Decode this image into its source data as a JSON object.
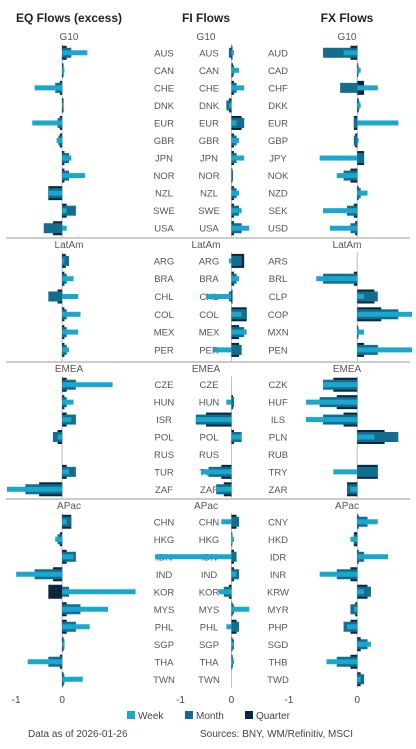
{
  "colors": {
    "week": "#19a7ce",
    "month": "#136d8c",
    "quarter": "#0b2740",
    "axis": "#bcbcbc",
    "sep": "#777777"
  },
  "legend": [
    {
      "key": "week",
      "label": "Week"
    },
    {
      "key": "month",
      "label": "Month"
    },
    {
      "key": "quarter",
      "label": "Quarter"
    }
  ],
  "footer": {
    "left": "Data as of 2026-01-26",
    "right": "Sources:  BNY, WM/Refinitiv, MSCI"
  },
  "chart_data": [
    {
      "type": "bar",
      "orientation": "horizontal",
      "title": "EQ Flows (excess)",
      "xlim": [
        -1.2,
        1.5
      ],
      "xticks": [
        -1,
        0
      ],
      "series_order": [
        "quarter",
        "month",
        "week"
      ],
      "groups": [
        {
          "name": "G10",
          "rows": [
            {
              "label": "AUS",
              "week": 0.55,
              "month": 0.2,
              "quarter": 0.1
            },
            {
              "label": "CAN",
              "week": 0.05,
              "month": 0.02,
              "quarter": 0.03
            },
            {
              "label": "CHE",
              "week": -0.6,
              "month": -0.15,
              "quarter": -0.05
            },
            {
              "label": "DNK",
              "week": 0.02,
              "month": 0.02,
              "quarter": 0.03
            },
            {
              "label": "EUR",
              "week": -0.65,
              "month": -0.1,
              "quarter": -0.05
            },
            {
              "label": "GBR",
              "week": -0.12,
              "month": -0.08,
              "quarter": -0.05
            },
            {
              "label": "JPN",
              "week": 0.2,
              "month": 0.15,
              "quarter": 0.05
            },
            {
              "label": "NOR",
              "week": 0.5,
              "month": 0.15,
              "quarter": 0.05
            },
            {
              "label": "NZL",
              "week": -0.3,
              "month": -0.3,
              "quarter": -0.3
            },
            {
              "label": "SWE",
              "week": 0.1,
              "month": 0.3,
              "quarter": 0.1
            },
            {
              "label": "USA",
              "week": 0.1,
              "month": -0.4,
              "quarter": -0.2
            }
          ]
        },
        {
          "name": "LatAm",
          "rows": [
            {
              "label": "ARG",
              "week": 0.05,
              "month": 0.15,
              "quarter": 0.08
            },
            {
              "label": "BRA",
              "week": 0.25,
              "month": 0.1,
              "quarter": 0.05
            },
            {
              "label": "CHL",
              "week": 0.35,
              "month": -0.3,
              "quarter": -0.1
            },
            {
              "label": "COL",
              "week": 0.4,
              "month": 0.1,
              "quarter": 0.05
            },
            {
              "label": "MEX",
              "week": 0.35,
              "month": 0.1,
              "quarter": 0.05
            },
            {
              "label": "PER",
              "week": 0.15,
              "month": 0.1,
              "quarter": 0.05
            }
          ]
        },
        {
          "name": "EMEA",
          "rows": [
            {
              "label": "CZE",
              "week": 1.1,
              "month": 0.3,
              "quarter": 0.1
            },
            {
              "label": "HUN",
              "week": 0.25,
              "month": 0.1,
              "quarter": 0.05
            },
            {
              "label": "ISR",
              "week": 0.2,
              "month": 0.3,
              "quarter": 0.1
            },
            {
              "label": "POL",
              "week": -0.1,
              "month": -0.2,
              "quarter": -0.1
            },
            {
              "label": "RUS",
              "week": 0.0,
              "month": 0.0,
              "quarter": 0.0
            },
            {
              "label": "TUR",
              "week": 0.15,
              "month": 0.3,
              "quarter": 0.1
            },
            {
              "label": "ZAF",
              "week": -1.2,
              "month": -0.8,
              "quarter": -0.5
            }
          ]
        },
        {
          "name": "APac",
          "rows": [
            {
              "label": "CHN",
              "week": 0.1,
              "month": 0.2,
              "quarter": 0.2
            },
            {
              "label": "HKG",
              "week": -0.15,
              "month": -0.1,
              "quarter": -0.05
            },
            {
              "label": "IDN",
              "week": 0.25,
              "month": 0.3,
              "quarter": 0.1
            },
            {
              "label": "IND",
              "week": -1.0,
              "month": -0.6,
              "quarter": -0.2
            },
            {
              "label": "KOR",
              "week": 1.6,
              "month": 0.15,
              "quarter": -0.3
            },
            {
              "label": "MYS",
              "week": 1.0,
              "month": 0.4,
              "quarter": 0.1
            },
            {
              "label": "PHL",
              "week": 0.6,
              "month": 0.3,
              "quarter": 0.1
            },
            {
              "label": "SGP",
              "week": 0.05,
              "month": 0.05,
              "quarter": 0.03
            },
            {
              "label": "THA",
              "week": -0.75,
              "month": -0.3,
              "quarter": -0.05
            },
            {
              "label": "TWN",
              "week": 0.45,
              "month": 0.05,
              "quarter": 0.03
            }
          ]
        }
      ]
    },
    {
      "type": "bar",
      "orientation": "horizontal",
      "title": "FI Flows",
      "xlim": [
        -1.6,
        0.6
      ],
      "xticks": [
        -1,
        0
      ],
      "series_order": [
        "quarter",
        "month",
        "week"
      ],
      "groups": [
        {
          "name": "G10",
          "rows": [
            {
              "label": "AUS",
              "week": 0.05,
              "month": -0.05,
              "quarter": 0.02
            },
            {
              "label": "CAN",
              "week": 0.15,
              "month": 0.05,
              "quarter": 0.03
            },
            {
              "label": "CHE",
              "week": 0.25,
              "month": 0.1,
              "quarter": 0.05
            },
            {
              "label": "DNK",
              "week": -0.05,
              "month": -0.1,
              "quarter": -0.05
            },
            {
              "label": "EUR",
              "week": 0.1,
              "month": 0.25,
              "quarter": 0.2
            },
            {
              "label": "GBR",
              "week": 0.15,
              "month": 0.1,
              "quarter": 0.05
            },
            {
              "label": "JPN",
              "week": 0.25,
              "month": 0.1,
              "quarter": 0.05
            },
            {
              "label": "NOR",
              "week": 0.0,
              "month": 0.03,
              "quarter": 0.02
            },
            {
              "label": "NZL",
              "week": 0.15,
              "month": 0.1,
              "quarter": 0.05
            },
            {
              "label": "SWE",
              "week": 0.2,
              "month": 0.15,
              "quarter": 0.05
            },
            {
              "label": "USA",
              "week": 0.35,
              "month": 0.2,
              "quarter": 0.05
            }
          ]
        },
        {
          "name": "LatAm",
          "rows": [
            {
              "label": "ARG",
              "week": -0.05,
              "month": 0.2,
              "quarter": 0.25
            },
            {
              "label": "BRA",
              "week": 0.15,
              "month": 0.1,
              "quarter": 0.05
            },
            {
              "label": "CHL",
              "week": -0.5,
              "month": -0.05,
              "quarter": 0.02
            },
            {
              "label": "COL",
              "week": 0.2,
              "month": 0.3,
              "quarter": 0.3
            },
            {
              "label": "MEX",
              "week": 0.3,
              "month": 0.25,
              "quarter": 0.15
            },
            {
              "label": "PER",
              "week": -0.35,
              "month": 0.2,
              "quarter": 0.15
            }
          ]
        },
        {
          "name": "EMEA",
          "rows": [
            {
              "label": "CZE",
              "week": 0.0,
              "month": 0.0,
              "quarter": 0.0
            },
            {
              "label": "HUN",
              "week": -0.1,
              "month": 0.05,
              "quarter": 0.03
            },
            {
              "label": "ISR",
              "week": -0.7,
              "month": -0.7,
              "quarter": -0.5
            },
            {
              "label": "POL",
              "week": 0.2,
              "month": 0.2,
              "quarter": 0.05
            },
            {
              "label": "RUS",
              "week": 0.0,
              "month": 0.0,
              "quarter": 0.0
            },
            {
              "label": "TUR",
              "week": -0.6,
              "month": -0.45,
              "quarter": -0.2
            },
            {
              "label": "ZAF",
              "week": -0.3,
              "month": -0.3,
              "quarter": -0.15
            }
          ]
        },
        {
          "name": "APac",
          "rows": [
            {
              "label": "CHN",
              "week": -0.2,
              "month": 0.15,
              "quarter": 0.1
            },
            {
              "label": "HKG",
              "week": 0.05,
              "month": 0.02,
              "quarter": 0.01
            },
            {
              "label": "IDN",
              "week": -1.5,
              "month": 0.1,
              "quarter": 0.05
            },
            {
              "label": "IND",
              "week": 0.1,
              "month": 0.15,
              "quarter": 0.05
            },
            {
              "label": "KOR",
              "week": -0.25,
              "month": -0.15,
              "quarter": -0.05
            },
            {
              "label": "MYS",
              "week": 0.35,
              "month": 0.05,
              "quarter": 0.02
            },
            {
              "label": "PHL",
              "week": -0.1,
              "month": 0.15,
              "quarter": 0.1
            },
            {
              "label": "SGP",
              "week": 0.05,
              "month": 0.05,
              "quarter": 0.02
            },
            {
              "label": "THA",
              "week": 0.05,
              "month": 0.03,
              "quarter": 0.02
            },
            {
              "label": "TWN",
              "week": 0.0,
              "month": 0.0,
              "quarter": 0.0
            }
          ]
        }
      ]
    },
    {
      "type": "bar",
      "orientation": "horizontal",
      "title": "FX Flows",
      "xlim": [
        -1.1,
        0.8
      ],
      "xticks": [
        -1,
        0
      ],
      "series_order": [
        "quarter",
        "month",
        "week"
      ],
      "groups": [
        {
          "name": "G10",
          "rows": [
            {
              "label": "AUD",
              "week": -0.2,
              "month": -0.5,
              "quarter": -0.1
            },
            {
              "label": "CAD",
              "week": 0.05,
              "month": 0.02,
              "quarter": 0.01
            },
            {
              "label": "CHF",
              "week": 0.3,
              "month": -0.25,
              "quarter": 0.1
            },
            {
              "label": "DKK",
              "week": 0.05,
              "month": 0.03,
              "quarter": 0.02
            },
            {
              "label": "EUR",
              "week": 0.6,
              "month": -0.05,
              "quarter": -0.05
            },
            {
              "label": "GBP",
              "week": 0.02,
              "month": -0.05,
              "quarter": -0.03
            },
            {
              "label": "JPY",
              "week": -0.55,
              "month": 0.1,
              "quarter": 0.1
            },
            {
              "label": "NOK",
              "week": -0.3,
              "month": -0.2,
              "quarter": -0.1
            },
            {
              "label": "NZD",
              "week": 0.15,
              "month": 0.05,
              "quarter": 0.02
            },
            {
              "label": "SEK",
              "week": -0.5,
              "month": -0.15,
              "quarter": -0.05
            },
            {
              "label": "USD",
              "week": -0.4,
              "month": -0.1,
              "quarter": -0.03
            }
          ]
        },
        {
          "name": "LatAm",
          "rows": [
            {
              "label": "ARS",
              "week": 0.0,
              "month": 0.0,
              "quarter": 0.0
            },
            {
              "label": "BRL",
              "week": -0.6,
              "month": -0.5,
              "quarter": -0.05
            },
            {
              "label": "CLP",
              "week": 0.1,
              "month": 0.3,
              "quarter": 0.25
            },
            {
              "label": "COP",
              "week": 0.8,
              "month": 0.6,
              "quarter": 0.35
            },
            {
              "label": "MXN",
              "week": 0.1,
              "month": 0.02,
              "quarter": 0.01
            },
            {
              "label": "PEN",
              "week": 0.8,
              "month": 0.3,
              "quarter": 0.1
            }
          ]
        },
        {
          "name": "EMEA",
          "rows": [
            {
              "label": "CZK",
              "week": -0.5,
              "month": -0.5,
              "quarter": -0.35
            },
            {
              "label": "HUF",
              "week": -0.75,
              "month": -0.55,
              "quarter": -0.3
            },
            {
              "label": "ILS",
              "week": -0.75,
              "month": -0.5,
              "quarter": -0.2
            },
            {
              "label": "PLN",
              "week": 0.25,
              "month": 0.6,
              "quarter": 0.4
            },
            {
              "label": "RUB",
              "week": 0.0,
              "month": 0.0,
              "quarter": 0.0
            },
            {
              "label": "TRY",
              "week": -0.35,
              "month": 0.3,
              "quarter": 0.3
            },
            {
              "label": "ZAR",
              "week": -0.1,
              "month": -0.15,
              "quarter": -0.15
            }
          ]
        },
        {
          "name": "APac",
          "rows": [
            {
              "label": "CNY",
              "week": 0.3,
              "month": 0.15,
              "quarter": 0.02
            },
            {
              "label": "HKD",
              "week": -0.1,
              "month": -0.05,
              "quarter": -0.05
            },
            {
              "label": "IDR",
              "week": 0.45,
              "month": 0.1,
              "quarter": 0.02
            },
            {
              "label": "INR",
              "week": -0.55,
              "month": -0.3,
              "quarter": -0.1
            },
            {
              "label": "KRW",
              "week": 0.1,
              "month": 0.2,
              "quarter": 0.15
            },
            {
              "label": "MYR",
              "week": -0.05,
              "month": -0.1,
              "quarter": -0.03
            },
            {
              "label": "PHP",
              "week": -0.15,
              "month": -0.2,
              "quarter": -0.1
            },
            {
              "label": "SGD",
              "week": 0.2,
              "month": 0.15,
              "quarter": 0.05
            },
            {
              "label": "THB",
              "week": -0.45,
              "month": -0.3,
              "quarter": -0.1
            },
            {
              "label": "TWD",
              "week": 0.05,
              "month": 0.1,
              "quarter": 0.05
            }
          ]
        }
      ]
    }
  ]
}
